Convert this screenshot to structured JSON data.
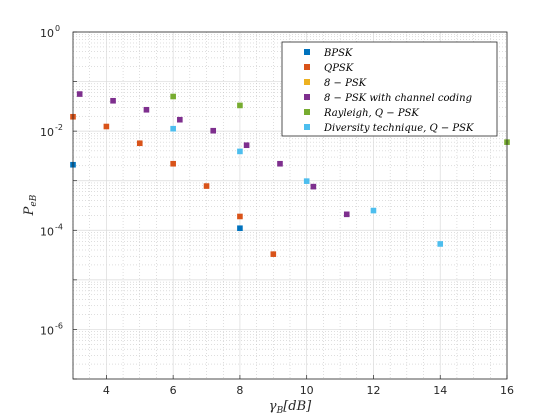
{
  "chart_data": {
    "type": "scatter",
    "title": "",
    "xlabel": "γB[dB]",
    "ylabel": "PeB",
    "xlim": [
      3,
      16
    ],
    "ylim_log10": [
      -7,
      0
    ],
    "x_ticks": [
      "4",
      "6",
      "8",
      "10",
      "12",
      "14",
      "16"
    ],
    "y_ticks": [
      {
        "base": "10",
        "exp": "0"
      },
      {
        "base": "10",
        "exp": "-2"
      },
      {
        "base": "10",
        "exp": "-4"
      },
      {
        "base": "10",
        "exp": "-6"
      }
    ],
    "grid": true,
    "legend_position": "top-right",
    "series": [
      {
        "name": "BPSK",
        "color": "#0072BD",
        "x": [
          3,
          8
        ],
        "y": [
          0.0021,
          0.00011
        ]
      },
      {
        "name": "QPSK",
        "color": "#D95319",
        "x": [
          3,
          4,
          5,
          6,
          7,
          8,
          9
        ],
        "y": [
          0.0195,
          0.0124,
          0.0057,
          0.0022,
          0.00078,
          0.00019,
          3.3e-05
        ]
      },
      {
        "name": "8 − PSK",
        "color": "#EDB120",
        "x": [],
        "y": []
      },
      {
        "name": "8 − PSK with channel coding",
        "color": "#7E2F8E",
        "x": [
          3.2,
          4.2,
          5.2,
          6.2,
          7.2,
          8.2,
          9.2,
          10.2,
          11.2
        ],
        "y": [
          0.056,
          0.041,
          0.027,
          0.017,
          0.0102,
          0.0052,
          0.0022,
          0.00076,
          0.00021
        ]
      },
      {
        "name": "Rayleigh, Q − PSK",
        "color": "#77AC30",
        "x": [
          6,
          8,
          16
        ],
        "y": [
          0.05,
          0.033,
          0.006
        ]
      },
      {
        "name": "Diversity technique, Q − PSK",
        "color": "#4DBEEE",
        "x": [
          6,
          8,
          10,
          12,
          14
        ],
        "y": [
          0.0112,
          0.0039,
          0.00098,
          0.00025,
          5.3e-05
        ]
      }
    ]
  }
}
